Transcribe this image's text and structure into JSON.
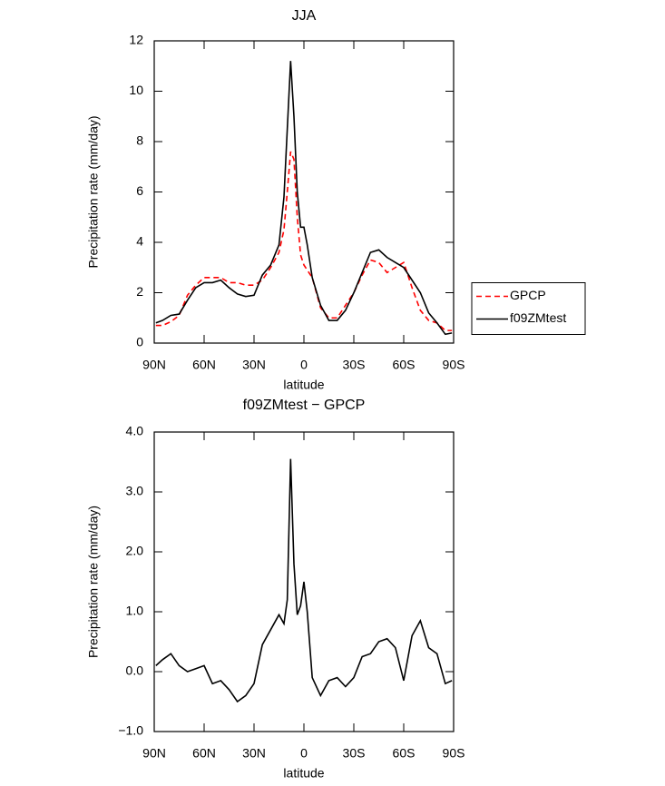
{
  "chart_data": [
    {
      "type": "line",
      "title": "JJA",
      "xlabel": "latitude",
      "ylabel": "Precipitation rate (mm/day)",
      "x": [
        89,
        85,
        80,
        75,
        70,
        65,
        60,
        55,
        50,
        45,
        40,
        35,
        30,
        25,
        20,
        15,
        12,
        10,
        8,
        6,
        4,
        2,
        0,
        -2,
        -5,
        -10,
        -15,
        -20,
        -25,
        -30,
        -35,
        -40,
        -45,
        -50,
        -55,
        -60,
        -65,
        -70,
        -75,
        -80,
        -85,
        -89
      ],
      "series": [
        {
          "name": "GPCP",
          "color": "#ff0000",
          "linestyle": "dashed",
          "values": [
            0.7,
            0.7,
            0.85,
            1.1,
            1.9,
            2.3,
            2.6,
            2.6,
            2.6,
            2.4,
            2.4,
            2.3,
            2.3,
            2.5,
            3.0,
            3.6,
            4.5,
            6.0,
            7.6,
            7.3,
            5.0,
            3.5,
            3.1,
            2.9,
            2.6,
            1.4,
            1.0,
            1.0,
            1.5,
            2.0,
            2.7,
            3.3,
            3.2,
            2.8,
            3.0,
            3.2,
            2.2,
            1.3,
            0.9,
            0.8,
            0.5,
            0.5
          ]
        },
        {
          "name": "f09ZMtest",
          "color": "#000000",
          "linestyle": "solid",
          "values": [
            0.8,
            0.9,
            1.1,
            1.15,
            1.7,
            2.2,
            2.4,
            2.4,
            2.5,
            2.2,
            1.95,
            1.85,
            1.9,
            2.7,
            3.1,
            3.9,
            5.8,
            8.5,
            11.2,
            9.0,
            6.0,
            4.6,
            4.6,
            3.9,
            2.6,
            1.5,
            0.9,
            0.9,
            1.3,
            2.0,
            2.8,
            3.6,
            3.7,
            3.4,
            3.2,
            3.0,
            2.5,
            2.0,
            1.2,
            0.8,
            0.35,
            0.4
          ]
        }
      ],
      "xlim": [
        90,
        -90
      ],
      "xticks": [
        {
          "value": 90,
          "label": "90N"
        },
        {
          "value": 60,
          "label": "60N"
        },
        {
          "value": 30,
          "label": "30N"
        },
        0,
        {
          "value": -30,
          "label": "30S"
        },
        {
          "value": -60,
          "label": "60S"
        },
        {
          "value": -90,
          "label": "90S"
        }
      ],
      "ylim": [
        0,
        12
      ],
      "yticks": [
        0,
        2,
        4,
        6,
        8,
        10,
        12
      ],
      "legend": "right"
    },
    {
      "type": "line",
      "title": "f09ZMtest − GPCP",
      "xlabel": "latitude",
      "ylabel": "Precipitation rate (mm/day)",
      "x": [
        89,
        85,
        80,
        75,
        70,
        65,
        60,
        55,
        50,
        45,
        40,
        35,
        30,
        25,
        20,
        15,
        12,
        10,
        8,
        6,
        4,
        2,
        0,
        -2,
        -5,
        -10,
        -15,
        -20,
        -25,
        -30,
        -35,
        -40,
        -45,
        -50,
        -55,
        -60,
        -65,
        -70,
        -75,
        -80,
        -85,
        -89
      ],
      "series": [
        {
          "color": "#000000",
          "linestyle": "solid",
          "values": [
            0.1,
            0.2,
            0.3,
            0.1,
            0.0,
            0.05,
            0.1,
            -0.2,
            -0.15,
            -0.3,
            -0.5,
            -0.4,
            -0.2,
            0.45,
            0.7,
            0.95,
            0.8,
            1.2,
            3.55,
            1.8,
            0.95,
            1.1,
            1.5,
            1.0,
            -0.1,
            -0.4,
            -0.15,
            -0.1,
            -0.25,
            -0.1,
            0.25,
            0.3,
            0.5,
            0.55,
            0.4,
            -0.15,
            0.6,
            0.85,
            0.4,
            0.3,
            -0.2,
            -0.15
          ]
        }
      ],
      "xlim": [
        90,
        -90
      ],
      "xticks": [
        {
          "value": 90,
          "label": "90N"
        },
        {
          "value": 60,
          "label": "60N"
        },
        {
          "value": 30,
          "label": "30N"
        },
        0,
        {
          "value": -30,
          "label": "30S"
        },
        {
          "value": -60,
          "label": "60S"
        },
        {
          "value": -90,
          "label": "90S"
        }
      ],
      "ylim": [
        -1,
        4
      ],
      "yticks": [
        {
          "value": -1,
          "label": "−1.0"
        },
        {
          "value": 0,
          "label": "0.0"
        },
        {
          "value": 1,
          "label": "1.0"
        },
        {
          "value": 2,
          "label": "2.0"
        },
        {
          "value": 3,
          "label": "3.0"
        },
        {
          "value": 4,
          "label": "4.0"
        }
      ]
    }
  ]
}
